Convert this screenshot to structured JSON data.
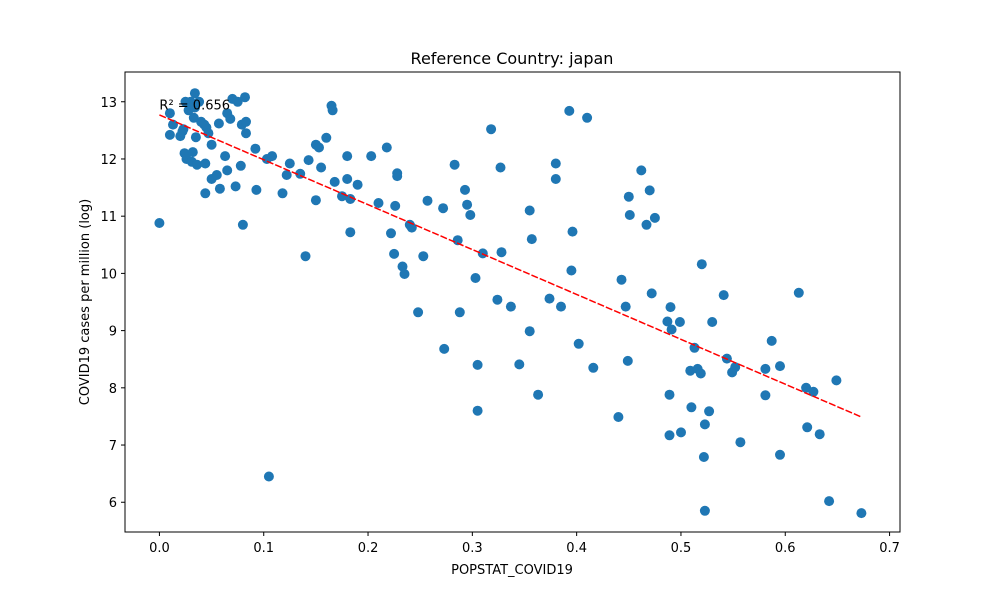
{
  "chart_data": {
    "type": "scatter",
    "title": "Reference Country: japan",
    "xlabel": "POPSTAT_COVID19",
    "ylabel": "COVID19 cases per million (log)",
    "xlim": [
      -0.033,
      0.71
    ],
    "ylim": [
      5.48,
      13.52
    ],
    "xticks": [
      0.0,
      0.1,
      0.2,
      0.3,
      0.4,
      0.5,
      0.6,
      0.7
    ],
    "xtick_labels": [
      "0.0",
      "0.1",
      "0.2",
      "0.3",
      "0.4",
      "0.5",
      "0.6",
      "0.7"
    ],
    "yticks": [
      6,
      7,
      8,
      9,
      10,
      11,
      12,
      13
    ],
    "ytick_labels": [
      "6",
      "7",
      "8",
      "9",
      "10",
      "11",
      "12",
      "13"
    ],
    "grid": false,
    "annotation": {
      "text": "R² = 0.656",
      "x": 0.0,
      "y": 12.95
    },
    "point_color": "#1f77b4",
    "trend_color": "#ff0000",
    "trendline": {
      "x": [
        0.0,
        0.673
      ],
      "y": [
        12.77,
        7.49
      ]
    },
    "points": [
      [
        0.0,
        10.88
      ],
      [
        0.01,
        12.8
      ],
      [
        0.01,
        12.42
      ],
      [
        0.013,
        12.6
      ],
      [
        0.02,
        12.4
      ],
      [
        0.022,
        12.48
      ],
      [
        0.023,
        12.52
      ],
      [
        0.024,
        12.1
      ],
      [
        0.025,
        13.0
      ],
      [
        0.026,
        12.0
      ],
      [
        0.028,
        12.85
      ],
      [
        0.03,
        13.0
      ],
      [
        0.031,
        12.95
      ],
      [
        0.031,
        11.95
      ],
      [
        0.032,
        12.12
      ],
      [
        0.033,
        12.72
      ],
      [
        0.034,
        12.9
      ],
      [
        0.034,
        13.15
      ],
      [
        0.035,
        12.38
      ],
      [
        0.036,
        11.9
      ],
      [
        0.038,
        13.0
      ],
      [
        0.04,
        12.65
      ],
      [
        0.043,
        12.6
      ],
      [
        0.044,
        11.92
      ],
      [
        0.044,
        11.4
      ],
      [
        0.045,
        12.55
      ],
      [
        0.047,
        12.45
      ],
      [
        0.05,
        12.25
      ],
      [
        0.05,
        11.65
      ],
      [
        0.055,
        11.72
      ],
      [
        0.057,
        12.62
      ],
      [
        0.058,
        11.48
      ],
      [
        0.063,
        12.05
      ],
      [
        0.065,
        12.8
      ],
      [
        0.065,
        11.8
      ],
      [
        0.068,
        12.7
      ],
      [
        0.07,
        13.05
      ],
      [
        0.073,
        11.52
      ],
      [
        0.075,
        13.0
      ],
      [
        0.078,
        11.88
      ],
      [
        0.079,
        12.6
      ],
      [
        0.08,
        10.85
      ],
      [
        0.082,
        13.08
      ],
      [
        0.083,
        12.45
      ],
      [
        0.083,
        12.65
      ],
      [
        0.092,
        12.18
      ],
      [
        0.093,
        11.46
      ],
      [
        0.103,
        12.0
      ],
      [
        0.105,
        6.45
      ],
      [
        0.108,
        12.05
      ],
      [
        0.118,
        11.4
      ],
      [
        0.122,
        11.72
      ],
      [
        0.125,
        11.92
      ],
      [
        0.135,
        11.74
      ],
      [
        0.14,
        10.3
      ],
      [
        0.143,
        11.98
      ],
      [
        0.15,
        12.25
      ],
      [
        0.15,
        11.28
      ],
      [
        0.153,
        12.2
      ],
      [
        0.155,
        11.85
      ],
      [
        0.16,
        12.37
      ],
      [
        0.165,
        12.93
      ],
      [
        0.166,
        12.85
      ],
      [
        0.168,
        11.6
      ],
      [
        0.175,
        11.35
      ],
      [
        0.18,
        12.05
      ],
      [
        0.18,
        11.65
      ],
      [
        0.183,
        11.3
      ],
      [
        0.183,
        10.72
      ],
      [
        0.19,
        11.55
      ],
      [
        0.203,
        12.05
      ],
      [
        0.21,
        11.23
      ],
      [
        0.218,
        12.2
      ],
      [
        0.222,
        10.7
      ],
      [
        0.225,
        10.34
      ],
      [
        0.226,
        11.18
      ],
      [
        0.228,
        11.75
      ],
      [
        0.228,
        11.7
      ],
      [
        0.233,
        10.12
      ],
      [
        0.235,
        9.99
      ],
      [
        0.24,
        10.85
      ],
      [
        0.242,
        10.8
      ],
      [
        0.248,
        9.32
      ],
      [
        0.253,
        10.3
      ],
      [
        0.257,
        11.27
      ],
      [
        0.272,
        11.14
      ],
      [
        0.273,
        8.68
      ],
      [
        0.283,
        11.9
      ],
      [
        0.286,
        10.58
      ],
      [
        0.288,
        9.32
      ],
      [
        0.293,
        11.46
      ],
      [
        0.295,
        11.2
      ],
      [
        0.298,
        11.02
      ],
      [
        0.303,
        9.92
      ],
      [
        0.305,
        8.4
      ],
      [
        0.305,
        7.6
      ],
      [
        0.31,
        10.35
      ],
      [
        0.318,
        12.52
      ],
      [
        0.324,
        9.54
      ],
      [
        0.327,
        11.85
      ],
      [
        0.328,
        10.37
      ],
      [
        0.337,
        9.42
      ],
      [
        0.345,
        8.41
      ],
      [
        0.355,
        11.1
      ],
      [
        0.355,
        8.99
      ],
      [
        0.357,
        10.6
      ],
      [
        0.363,
        7.88
      ],
      [
        0.374,
        9.56
      ],
      [
        0.38,
        11.92
      ],
      [
        0.38,
        11.65
      ],
      [
        0.385,
        9.42
      ],
      [
        0.393,
        12.84
      ],
      [
        0.395,
        10.05
      ],
      [
        0.396,
        10.73
      ],
      [
        0.402,
        8.77
      ],
      [
        0.41,
        12.72
      ],
      [
        0.416,
        8.35
      ],
      [
        0.44,
        7.49
      ],
      [
        0.443,
        9.89
      ],
      [
        0.447,
        9.42
      ],
      [
        0.449,
        8.47
      ],
      [
        0.45,
        11.34
      ],
      [
        0.451,
        11.02
      ],
      [
        0.462,
        11.8
      ],
      [
        0.467,
        10.85
      ],
      [
        0.47,
        11.45
      ],
      [
        0.472,
        9.65
      ],
      [
        0.475,
        10.97
      ],
      [
        0.487,
        9.16
      ],
      [
        0.489,
        7.88
      ],
      [
        0.489,
        7.17
      ],
      [
        0.49,
        9.41
      ],
      [
        0.491,
        9.02
      ],
      [
        0.499,
        9.15
      ],
      [
        0.5,
        7.22
      ],
      [
        0.509,
        8.3
      ],
      [
        0.51,
        7.66
      ],
      [
        0.513,
        8.7
      ],
      [
        0.516,
        8.33
      ],
      [
        0.519,
        8.25
      ],
      [
        0.52,
        10.16
      ],
      [
        0.522,
        6.79
      ],
      [
        0.523,
        7.36
      ],
      [
        0.523,
        5.85
      ],
      [
        0.527,
        7.59
      ],
      [
        0.53,
        9.15
      ],
      [
        0.541,
        9.62
      ],
      [
        0.544,
        8.51
      ],
      [
        0.549,
        8.27
      ],
      [
        0.552,
        8.36
      ],
      [
        0.557,
        7.05
      ],
      [
        0.581,
        8.33
      ],
      [
        0.581,
        7.87
      ],
      [
        0.587,
        8.82
      ],
      [
        0.595,
        8.38
      ],
      [
        0.595,
        6.83
      ],
      [
        0.613,
        9.66
      ],
      [
        0.62,
        8.0
      ],
      [
        0.621,
        7.31
      ],
      [
        0.627,
        7.93
      ],
      [
        0.633,
        7.19
      ],
      [
        0.642,
        6.02
      ],
      [
        0.649,
        8.13
      ],
      [
        0.673,
        5.81
      ]
    ]
  }
}
